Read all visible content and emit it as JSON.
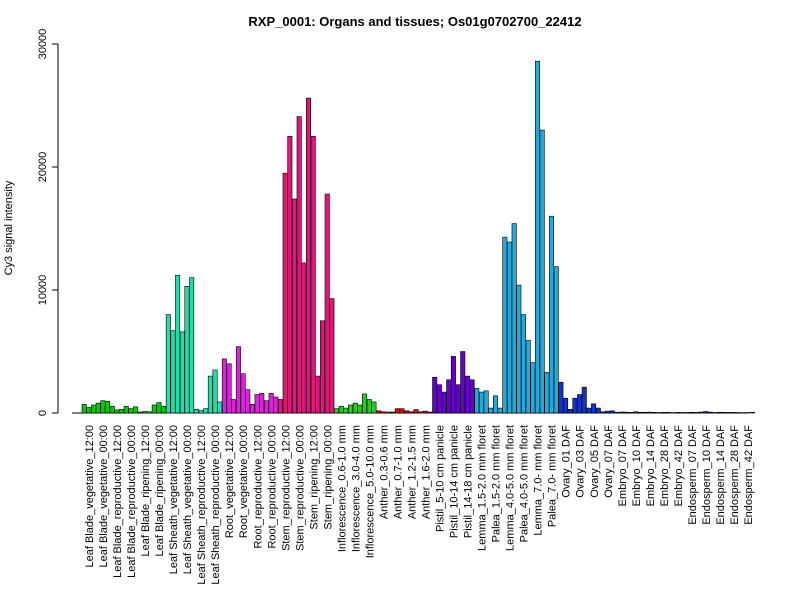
{
  "chart_data": {
    "type": "bar",
    "title": "RXP_0001: Organs and tissues; Os01g0702700_22412",
    "xlabel": "",
    "ylabel": "Cy3 signal intensity",
    "ylim": [
      0,
      30000
    ],
    "yticks": [
      0,
      10000,
      20000,
      30000
    ],
    "grid": false,
    "categories": [
      "Leaf Blade_vegetative_12:00",
      "Leaf Blade_vegetative_00:00",
      "Leaf Blade_reproductive_12:00",
      "Leaf Blade_reproductive_00:00",
      "Leaf Blade_ripening_12:00",
      "Leaf Blade_ripening_00:00",
      "Leaf Sheath_vegetative_12:00",
      "Leaf Sheath_vegetative_00:00",
      "Leaf Sheath_reproductive_12:00",
      "Leaf Sheath_reproductive_00:00",
      "Root_vegetative_12:00",
      "Root_vegetative_00:00",
      "Root_reproductive_12:00",
      "Root_reproductive_00:00",
      "Stem_reproductive_12:00",
      "Stem_reproductive_00:00",
      "Stem_ripening_12:00",
      "Stem_ripening_00:00",
      "Inflorescence_0.6-1.0 mm",
      "Inflorescence_3.0-4.0 mm",
      "Inflorescence_5.0-10.0 mm",
      "Anther_0.3-0.6 mm",
      "Anther_0.7-1.0 mm",
      "Anther_1.2-1.5 mm",
      "Anther_1.6-2.0 mm",
      "Pistil_5-10 cm panicle",
      "Pistil_10-14 cm panicle",
      "Pistil_14-18 cm panicle",
      "Lemma_1.5-2.0 mm floret",
      "Palea_1.5-2.0 mm floret",
      "Lemma_4.0-5.0 mm floret",
      "Palea_4.0-5.0 mm floret",
      "Lemma_7.0- mm floret",
      "Palea_7.0- mm floret",
      "Ovary_01 DAF",
      "Ovary_03 DAF",
      "Ovary_05 DAF",
      "Ovary_07 DAF",
      "Embryo_07 DAF",
      "Embryo_10 DAF",
      "Embryo_14 DAF",
      "Embryo_28 DAF",
      "Embryo_42 DAF",
      "Endosperm_07 DAF",
      "Endosperm_10 DAF",
      "Endosperm_14 DAF",
      "Endosperm_28 DAF",
      "Endosperm_42 DAF"
    ],
    "colors": [
      "#00cc00",
      "#00cc00",
      "#00cc00",
      "#00cc00",
      "#00cc00",
      "#00cc00",
      "#22ddaa",
      "#22ddaa",
      "#22ddaa",
      "#22ddaa",
      "#dd22dd",
      "#dd22dd",
      "#dd22dd",
      "#dd22dd",
      "#e0157a",
      "#e0157a",
      "#e0157a",
      "#e0157a",
      "#22cc22",
      "#22cc22",
      "#22cc22",
      "#cc1111",
      "#cc1111",
      "#cc1111",
      "#cc1111",
      "#6600cc",
      "#6600cc",
      "#6600cc",
      "#22aadd",
      "#22aadd",
      "#22aadd",
      "#22aadd",
      "#22aadd",
      "#22aadd",
      "#1133cc",
      "#1133cc",
      "#1133cc",
      "#1133cc",
      "#1133cc",
      "#1133cc",
      "#1133cc",
      "#1133cc",
      "#1133cc",
      "#1133cc",
      "#1133cc",
      "#1133cc",
      "#1133cc",
      "#1133cc"
    ],
    "values": [
      [
        700,
        450,
        650
      ],
      [
        800,
        1000,
        950
      ],
      [
        550,
        250,
        300
      ],
      [
        550,
        350,
        500
      ],
      [
        80,
        120,
        100
      ],
      [
        650,
        850,
        550
      ],
      [
        8000,
        6700,
        11200
      ],
      [
        6600,
        10300,
        11000
      ],
      [
        300,
        200,
        350
      ],
      [
        3000,
        3500,
        900
      ],
      [
        4400,
        4000,
        1100
      ],
      [
        5400,
        3200,
        1900
      ],
      [
        700,
        1500,
        1600
      ],
      [
        1000,
        1600,
        1300
      ],
      [
        1100,
        19500,
        22500
      ],
      [
        17400,
        24100,
        12200
      ],
      [
        25600,
        22500,
        3000
      ],
      [
        7500,
        17800,
        9300
      ],
      [
        350,
        550,
        400
      ],
      [
        650,
        800,
        650
      ],
      [
        1550,
        1100,
        900
      ],
      [
        180,
        100,
        80
      ],
      [
        80,
        350,
        350
      ],
      [
        180,
        100,
        280
      ],
      [
        100,
        150,
        80
      ],
      [
        2900,
        2300,
        1700
      ],
      [
        2700,
        4600,
        2300
      ],
      [
        5000,
        3000,
        2700
      ],
      [
        2000,
        1700,
        1800
      ],
      [
        400,
        1400,
        400
      ],
      [
        14300,
        13900,
        15400
      ],
      [
        10400,
        8000,
        5900
      ],
      [
        4100,
        28600,
        23000
      ],
      [
        3300,
        16000,
        11900
      ],
      [
        2500,
        1200,
        300
      ],
      [
        1200,
        1500,
        2100
      ],
      [
        400,
        750,
        400
      ],
      [
        100,
        150,
        180
      ],
      [
        60,
        80,
        70
      ],
      [
        50,
        100,
        60
      ],
      [
        60,
        70,
        50
      ],
      [
        40,
        50,
        50
      ],
      [
        30,
        50,
        40
      ],
      [
        40,
        60,
        50
      ],
      [
        80,
        120,
        70
      ],
      [
        40,
        60,
        50
      ],
      [
        50,
        50,
        40
      ],
      [
        30,
        40,
        50
      ]
    ]
  }
}
